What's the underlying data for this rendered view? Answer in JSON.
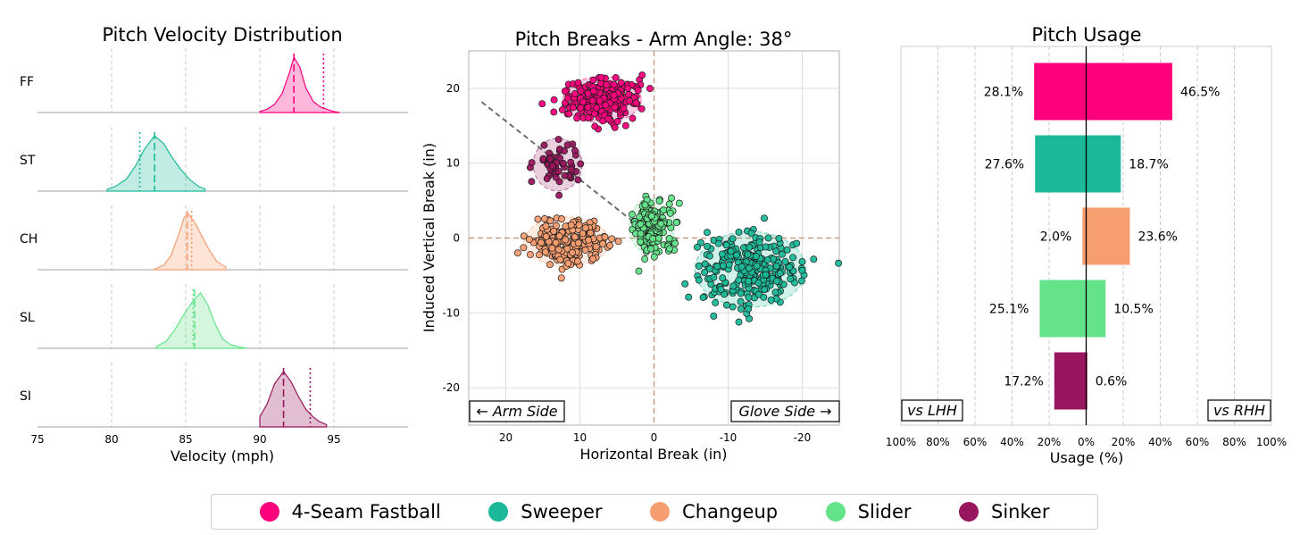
{
  "chart_data": [
    {
      "type": "area",
      "title": "Pitch Velocity Distribution",
      "xlabel": "Velocity (mph)",
      "ylabel": "",
      "xlim": [
        75,
        100
      ],
      "xticks": [
        "75",
        "80",
        "85",
        "90",
        "95"
      ],
      "grid": true,
      "series": [
        {
          "name": "FF",
          "pitch": "4-Seam Fastball",
          "color": "#FF007D",
          "mean_vs_lhh": 92.3,
          "mean_vs_rhh": 94.3,
          "range": [
            90.0,
            95.4
          ],
          "density": [
            [
              90.0,
              0.02
            ],
            [
              90.5,
              0.06
            ],
            [
              91.0,
              0.15
            ],
            [
              91.5,
              0.34
            ],
            [
              92.0,
              0.72
            ],
            [
              92.3,
              1.0
            ],
            [
              92.7,
              0.82
            ],
            [
              93.1,
              0.45
            ],
            [
              93.6,
              0.2
            ],
            [
              94.1,
              0.1
            ],
            [
              94.6,
              0.05
            ],
            [
              95.0,
              0.02
            ],
            [
              95.4,
              0.0
            ]
          ]
        },
        {
          "name": "ST",
          "pitch": "Sweeper",
          "color": "#1BB999",
          "mean_vs_lhh": 82.9,
          "mean_vs_rhh": 81.9,
          "range": [
            79.7,
            86.3
          ],
          "density": [
            [
              79.7,
              0.03
            ],
            [
              80.3,
              0.09
            ],
            [
              81.0,
              0.22
            ],
            [
              81.6,
              0.45
            ],
            [
              82.2,
              0.75
            ],
            [
              82.9,
              1.0
            ],
            [
              83.5,
              0.86
            ],
            [
              84.1,
              0.6
            ],
            [
              84.7,
              0.38
            ],
            [
              85.3,
              0.2
            ],
            [
              85.9,
              0.08
            ],
            [
              86.3,
              0.04
            ]
          ]
        },
        {
          "name": "CH",
          "pitch": "Changeup",
          "color": "#F79E70",
          "mean_vs_lhh": 85.1,
          "mean_vs_rhh": 85.4,
          "range": [
            82.8,
            87.7
          ],
          "density": [
            [
              82.8,
              0.0
            ],
            [
              83.5,
              0.08
            ],
            [
              84.0,
              0.25
            ],
            [
              84.5,
              0.62
            ],
            [
              84.9,
              0.95
            ],
            [
              85.2,
              1.0
            ],
            [
              85.6,
              0.86
            ],
            [
              86.1,
              0.6
            ],
            [
              86.6,
              0.35
            ],
            [
              87.1,
              0.15
            ],
            [
              87.7,
              0.05
            ]
          ]
        },
        {
          "name": "SL",
          "pitch": "Slider",
          "color": "#64E38A",
          "mean_vs_lhh": 85.6,
          "mean_vs_rhh": 85.5,
          "range": [
            83.0,
            89.1
          ],
          "density": [
            [
              83.0,
              0.03
            ],
            [
              83.7,
              0.13
            ],
            [
              84.3,
              0.35
            ],
            [
              84.9,
              0.62
            ],
            [
              85.5,
              0.86
            ],
            [
              86.0,
              1.0
            ],
            [
              86.5,
              0.78
            ],
            [
              87.0,
              0.43
            ],
            [
              87.5,
              0.17
            ],
            [
              88.0,
              0.07
            ],
            [
              88.5,
              0.03
            ],
            [
              89.1,
              0.0
            ]
          ]
        },
        {
          "name": "SI",
          "pitch": "Sinker",
          "color": "#98165D",
          "mean_vs_lhh": 91.6,
          "mean_vs_rhh": 93.4,
          "range": [
            90.0,
            94.5
          ],
          "density": [
            [
              90.0,
              0.18
            ],
            [
              90.5,
              0.42
            ],
            [
              91.0,
              0.78
            ],
            [
              91.6,
              1.0
            ],
            [
              92.1,
              0.82
            ],
            [
              92.6,
              0.55
            ],
            [
              93.1,
              0.32
            ],
            [
              93.6,
              0.18
            ],
            [
              94.0,
              0.1
            ],
            [
              94.5,
              0.04
            ]
          ]
        }
      ]
    },
    {
      "type": "scatter",
      "title": "Pitch Breaks - Arm Angle: 38°",
      "xlabel": "Horizontal Break (in)",
      "ylabel": "Induced Vertical Break (in)",
      "xlim": [
        25,
        -25
      ],
      "ylim": [
        -25,
        25
      ],
      "xticks": [
        "20",
        "10",
        "0",
        "-10",
        "-20"
      ],
      "yticks": [
        "20",
        "10",
        "0",
        "-10",
        "-20"
      ],
      "grid": true,
      "arm_angle_deg": 38,
      "annotations": [
        "← Arm Side",
        "Glove Side →"
      ],
      "series": [
        {
          "name": "FF",
          "color": "#FF007D",
          "center": [
            7.0,
            18.5
          ],
          "spread": [
            2.4,
            1.4
          ],
          "n": 260
        },
        {
          "name": "SI",
          "color": "#98165D",
          "center": [
            13.0,
            9.8
          ],
          "spread": [
            1.5,
            1.6
          ],
          "n": 55
        },
        {
          "name": "CH",
          "color": "#F79E70",
          "center": [
            11.8,
            -0.5
          ],
          "spread": [
            2.6,
            1.5
          ],
          "n": 230
        },
        {
          "name": "SL",
          "color": "#64E38A",
          "center": [
            0.3,
            1.6
          ],
          "spread": [
            1.4,
            1.7
          ],
          "n": 170
        },
        {
          "name": "ST",
          "color": "#1BB999",
          "center": [
            -13.0,
            -4.2
          ],
          "spread": [
            3.4,
            2.3
          ],
          "n": 270
        }
      ]
    },
    {
      "type": "bar",
      "title": "Pitch Usage",
      "xlabel": "Usage (%)",
      "ylabel": "",
      "xlim": [
        -100,
        100
      ],
      "xticks": [
        "100%",
        "80%",
        "60%",
        "40%",
        "20%",
        "0%",
        "20%",
        "40%",
        "60%",
        "80%",
        "100%"
      ],
      "grid": true,
      "annotations": [
        "vs LHH",
        "vs RHH"
      ],
      "categories": [
        "FF",
        "ST",
        "CH",
        "SL",
        "SI"
      ],
      "series": [
        {
          "name": "vs LHH",
          "values": [
            28.1,
            27.6,
            2.0,
            25.1,
            17.2
          ],
          "labels": [
            "28.1%",
            "27.6%",
            "2.0%",
            "25.1%",
            "17.2%"
          ]
        },
        {
          "name": "vs RHH",
          "values": [
            46.5,
            18.7,
            23.6,
            10.5,
            0.6
          ],
          "labels": [
            "46.5%",
            "18.7%",
            "23.6%",
            "10.5%",
            "0.6%"
          ]
        }
      ],
      "colors": [
        "#FF007D",
        "#1BB999",
        "#F79E70",
        "#64E38A",
        "#98165D"
      ]
    }
  ],
  "legend": [
    {
      "label": "4-Seam Fastball",
      "color": "#FF007D"
    },
    {
      "label": "Sweeper",
      "color": "#1BB999"
    },
    {
      "label": "Changeup",
      "color": "#F79E70"
    },
    {
      "label": "Slider",
      "color": "#64E38A"
    },
    {
      "label": "Sinker",
      "color": "#98165D"
    }
  ]
}
